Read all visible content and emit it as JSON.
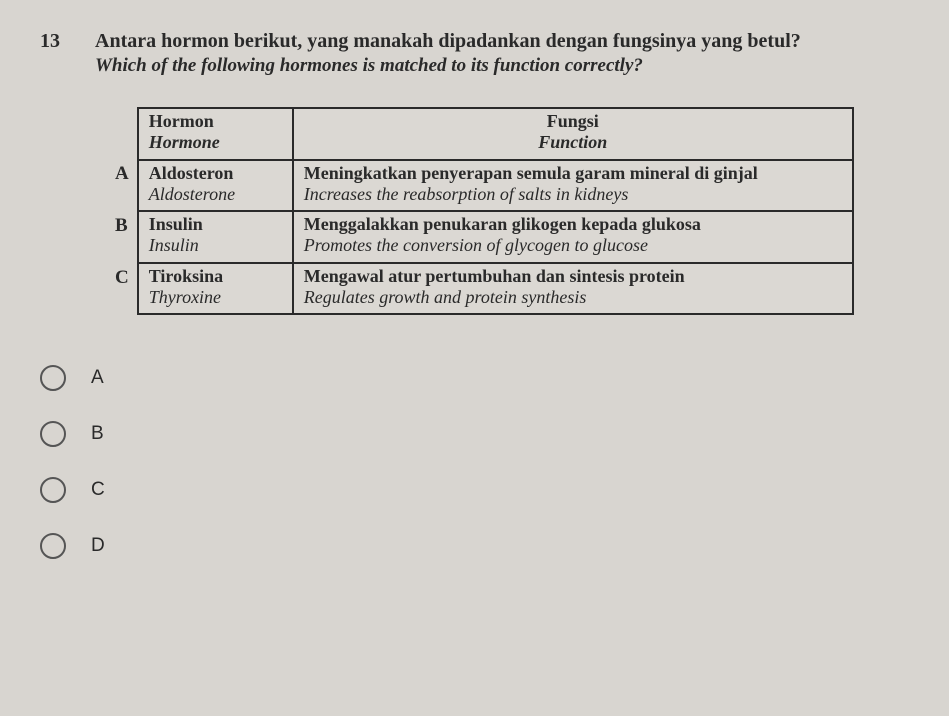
{
  "question": {
    "number": "13",
    "text_main": "Antara hormon berikut, yang manakah dipadankan dengan fungsinya yang betul?",
    "text_sub": "Which of the following hormones is matched to its function correctly?"
  },
  "table": {
    "headers": {
      "hormone_main": "Hormon",
      "hormone_sub": "Hormone",
      "function_main": "Fungsi",
      "function_sub": "Function"
    },
    "rows": [
      {
        "label": "A",
        "hormone_main": "Aldosteron",
        "hormone_sub": "Aldosterone",
        "function_main": "Meningkatkan penyerapan semula garam mineral di ginjal",
        "function_sub": "Increases the reabsorption of salts in kidneys"
      },
      {
        "label": "B",
        "hormone_main": "Insulin",
        "hormone_sub": "Insulin",
        "function_main": "Menggalakkan penukaran glikogen kepada glukosa",
        "function_sub": "Promotes the conversion of glycogen to glucose"
      },
      {
        "label": "C",
        "hormone_main": "Tiroksina",
        "hormone_sub": "Thyroxine",
        "function_main": "Mengawal atur pertumbuhan dan sintesis protein",
        "function_sub": "Regulates growth and protein synthesis"
      }
    ]
  },
  "options": [
    {
      "label": "A"
    },
    {
      "label": "B"
    },
    {
      "label": "C"
    },
    {
      "label": "D"
    }
  ],
  "style": {
    "background_color": "#d8d5d0",
    "text_color": "#2a2a2a",
    "border_color": "#2a2a2a",
    "radio_border_color": "#555",
    "question_fontsize": 20,
    "table_fontsize": 18,
    "option_fontsize": 19
  }
}
